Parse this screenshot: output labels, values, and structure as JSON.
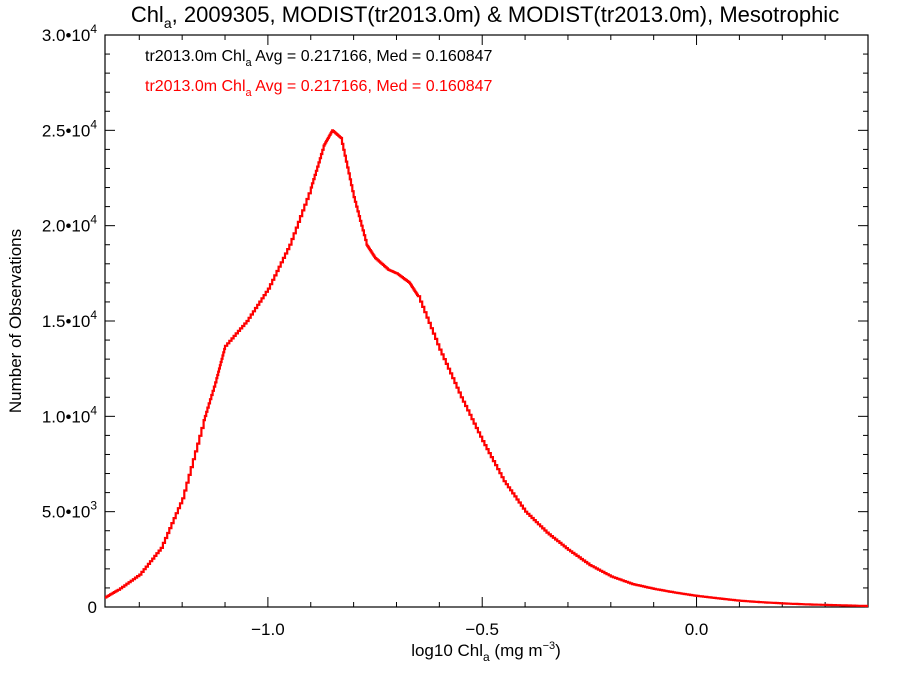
{
  "colors": {
    "background": "#ffffff",
    "axes": "#000000",
    "legend_black": "#000000",
    "series_red": "#ff0000"
  },
  "chart_data": {
    "type": "line",
    "title": {
      "main": "Chl",
      "sub": "a",
      "rest": ", 2009305, MODIST(tr2013.0m) & MODIST(tr2013.0m), Mesotrophic"
    },
    "xlabel": {
      "pre": "log10 Chl",
      "sub": "a",
      "mid": " (mg m",
      "sup": "−3",
      "post": ")"
    },
    "ylabel": "Number of Observations",
    "xlim": [
      -1.38,
      0.4
    ],
    "ylim": [
      0,
      30000
    ],
    "x_ticks": [
      {
        "value": -1.0,
        "label": "−1.0"
      },
      {
        "value": -0.5,
        "label": "−0.5"
      },
      {
        "value": 0.0,
        "label": "0.0"
      }
    ],
    "y_ticks": [
      {
        "value": 0,
        "mant": "0",
        "exp": ""
      },
      {
        "value": 5000,
        "mant": "5.0•10",
        "exp": "3"
      },
      {
        "value": 10000,
        "mant": "1.0•10",
        "exp": "4"
      },
      {
        "value": 15000,
        "mant": "1.5•10",
        "exp": "4"
      },
      {
        "value": 20000,
        "mant": "2.0•10",
        "exp": "4"
      },
      {
        "value": 25000,
        "mant": "2.5•10",
        "exp": "4"
      },
      {
        "value": 30000,
        "mant": "3.0•10",
        "exp": "4"
      }
    ],
    "legend": [
      {
        "pre": "tr2013.0m Chl",
        "sub": "a",
        "post": " Avg = 0.217166, Med = 0.160847",
        "color": "#000000"
      },
      {
        "pre": "tr2013.0m Chl",
        "sub": "a",
        "post": " Avg = 0.217166, Med = 0.160847",
        "color": "#ff0000"
      }
    ],
    "grid": false,
    "series": [
      {
        "color": "#ff0000",
        "step": true,
        "x": [
          -1.38,
          -1.35,
          -1.3,
          -1.25,
          -1.2,
          -1.15,
          -1.12,
          -1.1,
          -1.05,
          -1.0,
          -0.95,
          -0.9,
          -0.87,
          -0.85,
          -0.83,
          -0.8,
          -0.77,
          -0.75,
          -0.72,
          -0.7,
          -0.67,
          -0.65,
          -0.6,
          -0.55,
          -0.5,
          -0.45,
          -0.4,
          -0.35,
          -0.3,
          -0.25,
          -0.2,
          -0.15,
          -0.1,
          -0.05,
          0.0,
          0.05,
          0.1,
          0.15,
          0.2,
          0.25,
          0.3,
          0.35,
          0.4
        ],
        "y": [
          500,
          900,
          1700,
          3100,
          5700,
          9800,
          12000,
          13700,
          15000,
          16700,
          19000,
          22000,
          24200,
          25000,
          24600,
          21500,
          19000,
          18300,
          17700,
          17500,
          17000,
          16300,
          13500,
          11000,
          8700,
          6600,
          5000,
          3900,
          3000,
          2200,
          1600,
          1200,
          950,
          750,
          580,
          450,
          330,
          250,
          190,
          140,
          110,
          80,
          50
        ]
      }
    ]
  }
}
